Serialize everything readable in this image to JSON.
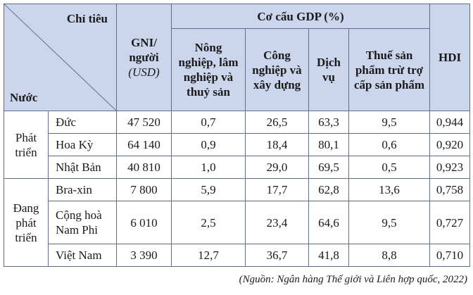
{
  "table": {
    "corner": {
      "column_label": "Chỉ tiêu",
      "row_label": "Nước"
    },
    "headers": {
      "gni": "GNI/ người",
      "gni_unit": "(USD)",
      "gdp_group": "Cơ cấu GDP (%)",
      "gdp": [
        "Nông nghiệp, lâm nghiệp và thuỷ sản",
        "Công nghiệp và xây dựng",
        "Dịch vụ",
        "Thuế sản phẩm trừ trợ cấp sản phẩm"
      ],
      "hdi": "HDI"
    },
    "groups": [
      {
        "name": "Phát triển",
        "rows": [
          [
            "Đức",
            "47 520",
            "0,7",
            "26,5",
            "63,3",
            "9,5",
            "0,944"
          ],
          [
            "Hoa Kỳ",
            "64 140",
            "0,9",
            "18,4",
            "80,1",
            "0,6",
            "0,920"
          ],
          [
            "Nhật Bản",
            "40 810",
            "1,0",
            "29,0",
            "69,5",
            "0,5",
            "0,923"
          ]
        ]
      },
      {
        "name": "Đang phát triển",
        "rows": [
          [
            "Bra-xin",
            "7 800",
            "5,9",
            "17,7",
            "62,8",
            "13,6",
            "0,758"
          ],
          [
            "Cộng hoà Nam Phi",
            "6 010",
            "2,5",
            "23,4",
            "64,6",
            "9,5",
            "0,727"
          ],
          [
            "Việt Nam",
            "3 390",
            "12,7",
            "36,7",
            "41,8",
            "8,8",
            "0,710"
          ]
        ]
      }
    ]
  },
  "source": "(Nguồn: Ngân hàng Thế giới và Liên hợp quốc, 2022)"
}
